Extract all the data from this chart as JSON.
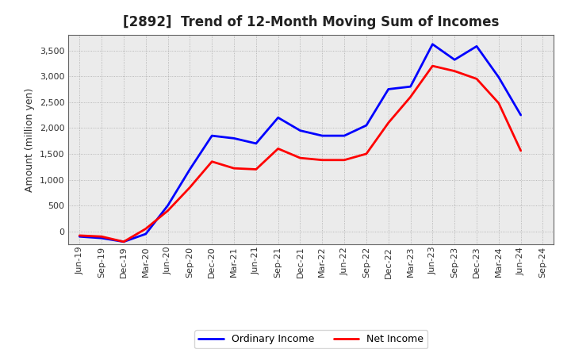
{
  "title": "[2892]  Trend of 12-Month Moving Sum of Incomes",
  "ylabel": "Amount (million yen)",
  "x_labels": [
    "Jun-19",
    "Sep-19",
    "Dec-19",
    "Mar-20",
    "Jun-20",
    "Sep-20",
    "Dec-20",
    "Mar-21",
    "Jun-21",
    "Sep-21",
    "Dec-21",
    "Mar-22",
    "Jun-22",
    "Sep-22",
    "Dec-22",
    "Mar-23",
    "Jun-23",
    "Sep-23",
    "Dec-23",
    "Mar-24",
    "Jun-24",
    "Sep-24"
  ],
  "ordinary_income": [
    -100,
    -130,
    -200,
    -50,
    500,
    1200,
    1850,
    1800,
    1700,
    2200,
    1950,
    1850,
    1850,
    2050,
    2750,
    2800,
    3620,
    3320,
    3580,
    2980,
    2250,
    null
  ],
  "net_income": [
    -80,
    -100,
    -200,
    50,
    400,
    850,
    1350,
    1220,
    1200,
    1600,
    1420,
    1380,
    1380,
    1500,
    2100,
    2600,
    3200,
    3100,
    2950,
    2480,
    1560,
    null
  ],
  "ylim": [
    -250,
    3800
  ],
  "yticks": [
    0,
    500,
    1000,
    1500,
    2000,
    2500,
    3000,
    3500
  ],
  "ordinary_color": "#0000FF",
  "net_color": "#FF0000",
  "bg_color": "#EBEBEB",
  "grid_color": "#999999",
  "line_width": 2.0,
  "title_color": "#222222",
  "title_fontsize": 12,
  "tick_fontsize": 8,
  "ylabel_fontsize": 9
}
